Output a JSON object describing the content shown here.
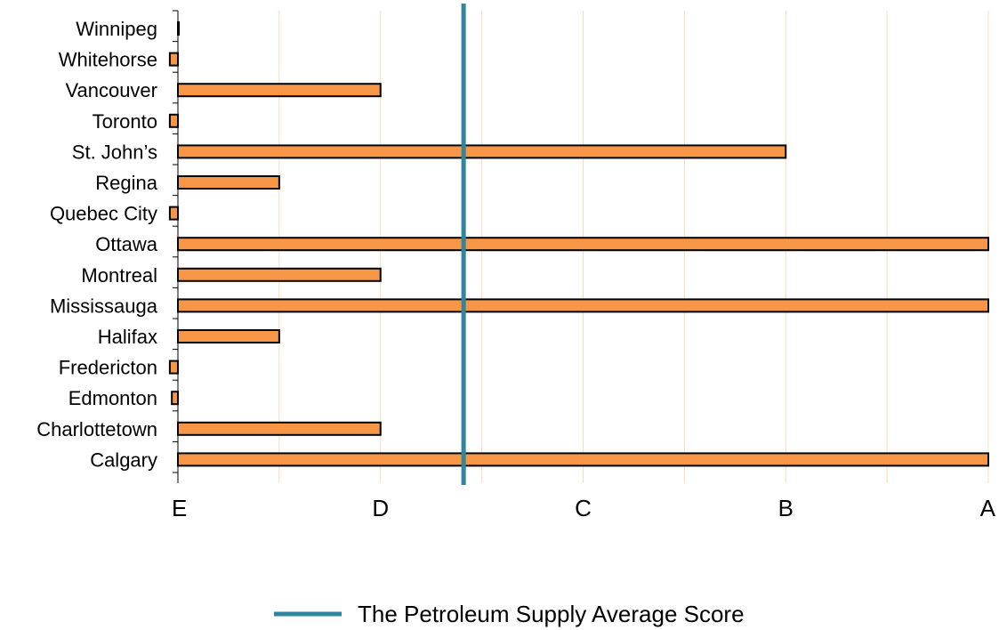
{
  "chart_data": {
    "type": "bar",
    "orientation": "horizontal",
    "categories": [
      "Winnipeg",
      "Whitehorse",
      "Vancouver",
      "Toronto",
      "St. John’s",
      "Regina",
      "Quebec City",
      "Ottawa",
      "Montreal",
      "Mississauga",
      "Halifax",
      "Fredericton",
      "Edmonton",
      "Charlottetown",
      "Calgary"
    ],
    "values": [
      0.0,
      -0.04,
      1.0,
      -0.04,
      3.0,
      0.5,
      -0.04,
      4.0,
      1.0,
      4.0,
      0.5,
      -0.04,
      -0.03,
      1.0,
      4.0
    ],
    "xlim": [
      0,
      4
    ],
    "x_ticks": [
      {
        "value": 0,
        "label": "E"
      },
      {
        "value": 1,
        "label": "D"
      },
      {
        "value": 2,
        "label": "C"
      },
      {
        "value": 3,
        "label": "B"
      },
      {
        "value": 4,
        "label": "A"
      }
    ],
    "minor_gridlines": [
      0.5,
      1.5,
      2.5,
      3.5
    ],
    "grid": true,
    "reference_line": {
      "name": "The Petroleum Supply Average Score",
      "value": 1.41,
      "color": "#31859c"
    },
    "legend": {
      "position": "bottom"
    },
    "colors": {
      "bar": "#f79646",
      "bar_edge": "#000000",
      "grid": "#fcdcb8"
    }
  }
}
